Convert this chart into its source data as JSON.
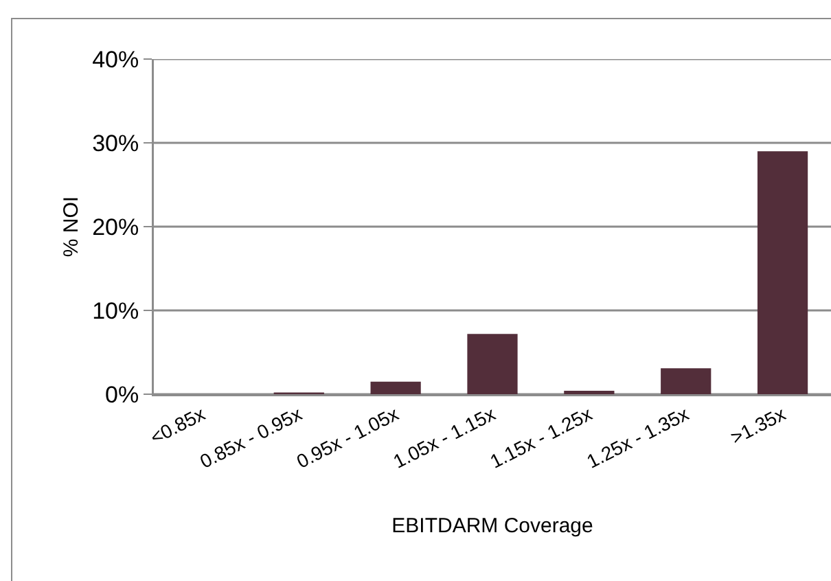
{
  "chart_data": {
    "type": "bar",
    "xlabel": "EBITDARM Coverage",
    "ylabel": "% NOI",
    "categories": [
      "<0.85x",
      "0.85x - 0.95x",
      "0.95x - 1.05x",
      "1.05x - 1.15x",
      "1.15x - 1.25x",
      "1.25x - 1.35x",
      ">1.35x"
    ],
    "values": [
      0,
      0.2,
      1.5,
      7.2,
      0.4,
      3.1,
      29.0
    ],
    "color": "#532e3a",
    "ylim": [
      0,
      40
    ],
    "yticks": [
      {
        "value": 0,
        "label": "0%"
      },
      {
        "value": 10,
        "label": "10%"
      },
      {
        "value": 20,
        "label": "20%"
      },
      {
        "value": 30,
        "label": "30%"
      },
      {
        "value": 40,
        "label": "40%"
      }
    ],
    "grid": "y"
  }
}
